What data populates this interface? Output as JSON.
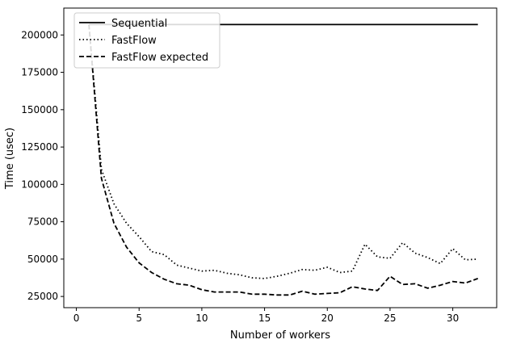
{
  "chart_data": {
    "type": "line",
    "title": "",
    "xlabel": "Number of workers",
    "ylabel": "Time (usec)",
    "xlim": [
      -1,
      33.5
    ],
    "ylim": [
      17500,
      218000
    ],
    "xticks": [
      0,
      5,
      10,
      15,
      20,
      25,
      30
    ],
    "yticks": [
      25000,
      50000,
      75000,
      100000,
      125000,
      150000,
      175000,
      200000
    ],
    "grid": false,
    "legend_position": "top-left",
    "x": [
      1,
      2,
      3,
      4,
      5,
      6,
      7,
      8,
      9,
      10,
      11,
      12,
      13,
      14,
      15,
      16,
      17,
      18,
      19,
      20,
      21,
      22,
      23,
      24,
      25,
      26,
      27,
      28,
      29,
      30,
      31,
      32
    ],
    "series": [
      {
        "name": "Sequential",
        "style": "solid",
        "color": "#000000",
        "values": [
          207000,
          207000,
          207000,
          207000,
          207000,
          207000,
          207000,
          207000,
          207000,
          207000,
          207000,
          207000,
          207000,
          207000,
          207000,
          207000,
          207000,
          207000,
          207000,
          207000,
          207000,
          207000,
          207000,
          207000,
          207000,
          207000,
          207000,
          207000,
          207000,
          207000,
          207000,
          207000
        ]
      },
      {
        "name": "FastFlow",
        "style": "dotted",
        "color": "#000000",
        "values": [
          207000,
          110000,
          87000,
          74000,
          65000,
          55000,
          53000,
          46000,
          44000,
          42000,
          42500,
          40500,
          39500,
          37500,
          37000,
          38500,
          40500,
          43000,
          42500,
          44500,
          41000,
          42000,
          60000,
          51500,
          50500,
          61000,
          54000,
          51000,
          47000,
          57000,
          49500,
          50000
        ]
      },
      {
        "name": "FastFlow expected",
        "style": "dashed",
        "color": "#000000",
        "values": [
          207000,
          104000,
          74000,
          58000,
          47500,
          41000,
          36500,
          33500,
          32500,
          29500,
          28000,
          28000,
          28000,
          26500,
          26500,
          26000,
          26000,
          28500,
          26500,
          27000,
          27500,
          31500,
          30000,
          29000,
          38500,
          33000,
          33500,
          30500,
          32500,
          35000,
          34000,
          37000
        ]
      }
    ]
  }
}
